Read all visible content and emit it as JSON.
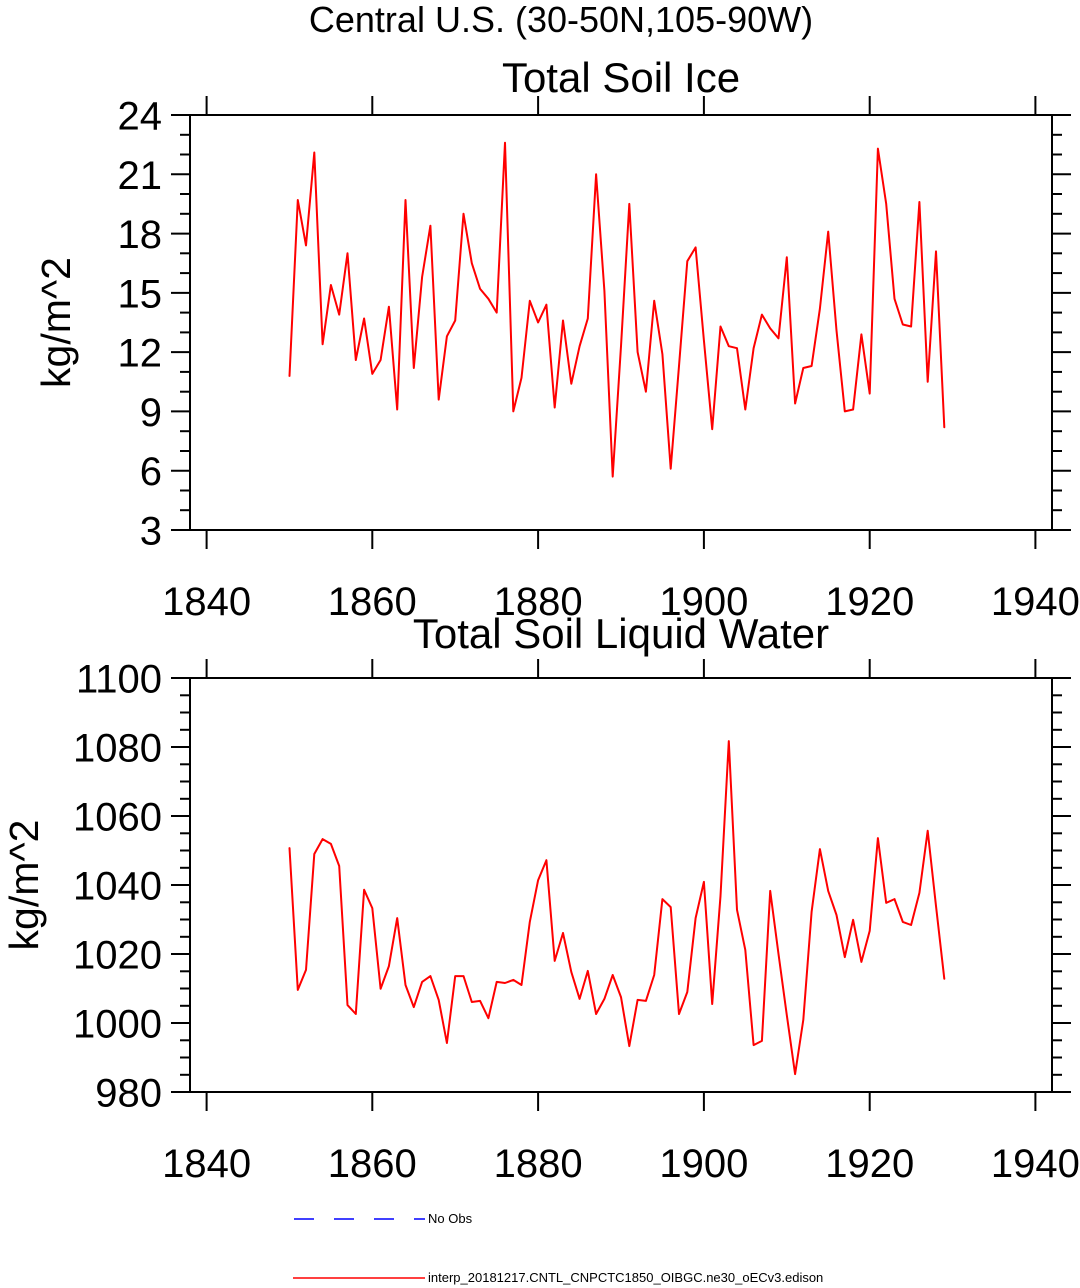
{
  "figure": {
    "title": "Central U.S. (30-50N,105-90W)"
  },
  "chart_data": [
    {
      "type": "line",
      "title": "Total Soil Ice",
      "xlabel": "",
      "ylabel": "kg/m^2",
      "xlim": [
        1838,
        1942
      ],
      "ylim": [
        3,
        24
      ],
      "xticks": [
        1840,
        1860,
        1880,
        1900,
        1920,
        1940
      ],
      "yticks": [
        3,
        6,
        9,
        12,
        15,
        18,
        21,
        24
      ],
      "grid": false,
      "x": [
        1850,
        1851,
        1852,
        1853,
        1854,
        1855,
        1856,
        1857,
        1858,
        1859,
        1860,
        1861,
        1862,
        1863,
        1864,
        1865,
        1866,
        1867,
        1868,
        1869,
        1870,
        1871,
        1872,
        1873,
        1874,
        1875,
        1876,
        1877,
        1878,
        1879,
        1880,
        1881,
        1882,
        1883,
        1884,
        1885,
        1886,
        1887,
        1888,
        1889,
        1890,
        1891,
        1892,
        1893,
        1894,
        1895,
        1896,
        1897,
        1898,
        1899,
        1900,
        1901,
        1902,
        1903,
        1904,
        1905,
        1906,
        1907,
        1908,
        1909,
        1910,
        1911,
        1912,
        1913,
        1914,
        1915,
        1916,
        1917,
        1918,
        1919,
        1920,
        1921,
        1922,
        1923,
        1924,
        1925,
        1926,
        1927,
        1928,
        1929
      ],
      "series": [
        {
          "color": "#ff0000",
          "values": [
            10.8,
            19.7,
            17.4,
            22.1,
            12.4,
            15.4,
            13.9,
            17.0,
            11.6,
            13.7,
            10.9,
            11.6,
            14.3,
            9.1,
            19.7,
            11.2,
            15.8,
            18.4,
            9.6,
            12.8,
            13.6,
            19.0,
            16.5,
            15.2,
            14.7,
            14.0,
            22.6,
            9.0,
            10.7,
            14.6,
            13.5,
            14.4,
            9.2,
            13.6,
            10.4,
            12.3,
            13.7,
            21.0,
            15.1,
            5.7,
            12.3,
            19.5,
            12.0,
            10.0,
            14.6,
            11.9,
            6.1,
            11.3,
            16.6,
            17.3,
            12.6,
            8.1,
            13.3,
            12.3,
            12.2,
            9.1,
            12.2,
            13.9,
            13.2,
            12.7,
            16.8,
            9.4,
            11.2,
            11.3,
            14.2,
            18.1,
            13.1,
            9.0,
            9.1,
            12.9,
            9.9,
            22.3,
            19.5,
            14.7,
            13.4,
            13.3,
            19.6,
            10.5,
            17.1,
            8.2
          ]
        }
      ]
    },
    {
      "type": "line",
      "title": "Total Soil Liquid Water",
      "xlabel": "",
      "ylabel": "kg/m^2",
      "xlim": [
        1838,
        1942
      ],
      "ylim": [
        980,
        1100
      ],
      "xticks": [
        1840,
        1860,
        1880,
        1900,
        1920,
        1940
      ],
      "yticks": [
        980,
        1000,
        1020,
        1040,
        1060,
        1080,
        1100
      ],
      "grid": false,
      "x": [
        1850,
        1851,
        1852,
        1853,
        1854,
        1855,
        1856,
        1857,
        1858,
        1859,
        1860,
        1861,
        1862,
        1863,
        1864,
        1865,
        1866,
        1867,
        1868,
        1869,
        1870,
        1871,
        1872,
        1873,
        1874,
        1875,
        1876,
        1877,
        1878,
        1879,
        1880,
        1881,
        1882,
        1883,
        1884,
        1885,
        1886,
        1887,
        1888,
        1889,
        1890,
        1891,
        1892,
        1893,
        1894,
        1895,
        1896,
        1897,
        1898,
        1899,
        1900,
        1901,
        1902,
        1903,
        1904,
        1905,
        1906,
        1907,
        1908,
        1909,
        1910,
        1911,
        1912,
        1913,
        1914,
        1915,
        1916,
        1917,
        1918,
        1919,
        1920,
        1921,
        1922,
        1923,
        1924,
        1925,
        1926,
        1927,
        1928,
        1929
      ],
      "series": [
        {
          "color": "#ff0000",
          "values": [
            1050.7,
            1009.6,
            1015.4,
            1049.0,
            1053.3,
            1051.9,
            1045.5,
            1005.2,
            1002.6,
            1038.6,
            1033.3,
            1009.9,
            1016.5,
            1030.4,
            1011.0,
            1004.6,
            1011.9,
            1013.6,
            1006.7,
            994.2,
            1013.6,
            1013.6,
            1006.1,
            1006.4,
            1001.4,
            1011.9,
            1011.6,
            1012.5,
            1011.0,
            1029.3,
            1041.4,
            1047.2,
            1018.0,
            1026.1,
            1014.8,
            1007.0,
            1015.1,
            1002.6,
            1007.0,
            1013.9,
            1007.5,
            993.3,
            1006.7,
            1006.4,
            1013.9,
            1035.9,
            1033.6,
            1002.6,
            1009.0,
            1030.4,
            1040.9,
            1005.5,
            1036.8,
            1081.7,
            1032.8,
            1021.2,
            993.6,
            994.8,
            1038.3,
            1020.0,
            1002.3,
            985.2,
            1000.9,
            1032.2,
            1050.4,
            1038.3,
            1031.3,
            1019.1,
            1029.9,
            1017.7,
            1026.7,
            1053.6,
            1034.8,
            1035.9,
            1029.3,
            1028.4,
            1037.7,
            1055.7,
            1033.9,
            1012.8
          ]
        }
      ]
    }
  ],
  "legend": [
    {
      "label": "No Obs",
      "color": "#0000ff",
      "dashed": true
    },
    {
      "label": "interp_20181217.CNTL_CNPCTC1850_OIBGC.ne30_oECv3.edison",
      "color": "#ff0000",
      "dashed": false
    }
  ]
}
